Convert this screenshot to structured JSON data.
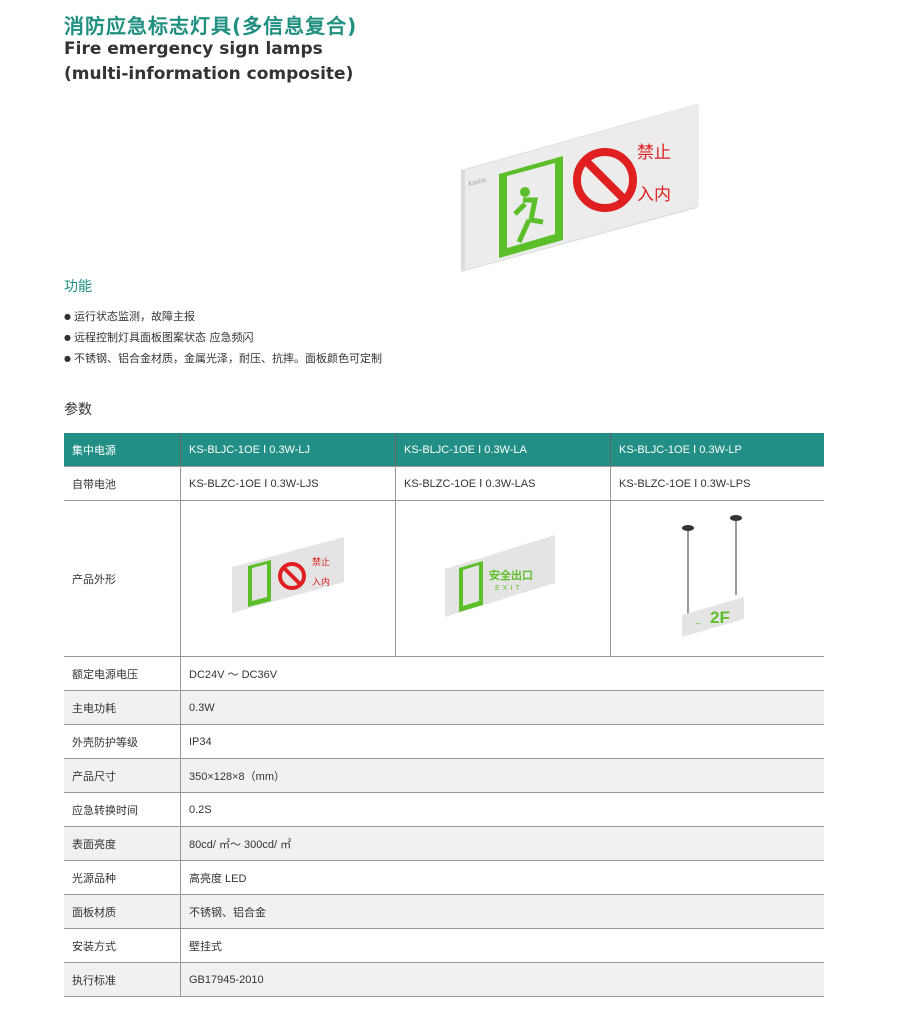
{
  "header": {
    "title": "消防应急标志灯具(多信息复合)",
    "subtitle_line1": "Fire emergency sign lamps",
    "subtitle_line2": "(multi-information composite)"
  },
  "product_image": {
    "brand": "Kasloc",
    "sign_text_1": "禁止",
    "sign_text_2": "入内",
    "colors": {
      "green": "#5cbf2a",
      "red": "#e02020"
    }
  },
  "features": {
    "heading": "功能",
    "items": [
      "运行状态监测，故障主报",
      "远程控制灯具面板图案状态 应急频闪",
      "不锈钢、铝合金材质，金属光泽，耐压、抗摔。面板颜色可定制"
    ]
  },
  "params": {
    "heading": "参数",
    "header_row": [
      "集中电源",
      "KS-BLJC-1OE Ⅰ 0.3W-LJ",
      "KS-BLJC-1OE Ⅰ 0.3W-LA",
      "KS-BLJC-1OE Ⅰ 0.3W-LP"
    ],
    "battery_row": [
      "自带电池",
      "KS-BLZC-1OE Ⅰ 0.3W-LJS",
      "KS-BLZC-1OE Ⅰ 0.3W-LAS",
      "KS-BLZC-1OE Ⅰ 0.3W-LPS"
    ],
    "appearance_label": "产品外形",
    "appearance": {
      "lj_text_1": "禁止",
      "lj_text_2": "入内",
      "la_text": "安全出口",
      "la_sub": "EXIT",
      "lp_text": "2F"
    },
    "rows": [
      {
        "label": "额定电源电压",
        "value": "DC24V ～ DC36V"
      },
      {
        "label": "主电功耗",
        "value": "0.3W"
      },
      {
        "label": "外壳防护等级",
        "value": "IP34"
      },
      {
        "label": "产品尺寸",
        "value": "350×128×8（mm）"
      },
      {
        "label": "应急转换时间",
        "value": "0.2S"
      },
      {
        "label": "表面亮度",
        "value": "80cd/ ㎡～ 300cd/ ㎡"
      },
      {
        "label": "光源品种",
        "value": "高亮度 LED"
      },
      {
        "label": "面板材质",
        "value": "不锈钢、铝合金"
      },
      {
        "label": "安装方式",
        "value": "壁挂式"
      },
      {
        "label": "执行标准",
        "value": "GB17945-2010"
      }
    ],
    "header_color": "#218f85"
  }
}
